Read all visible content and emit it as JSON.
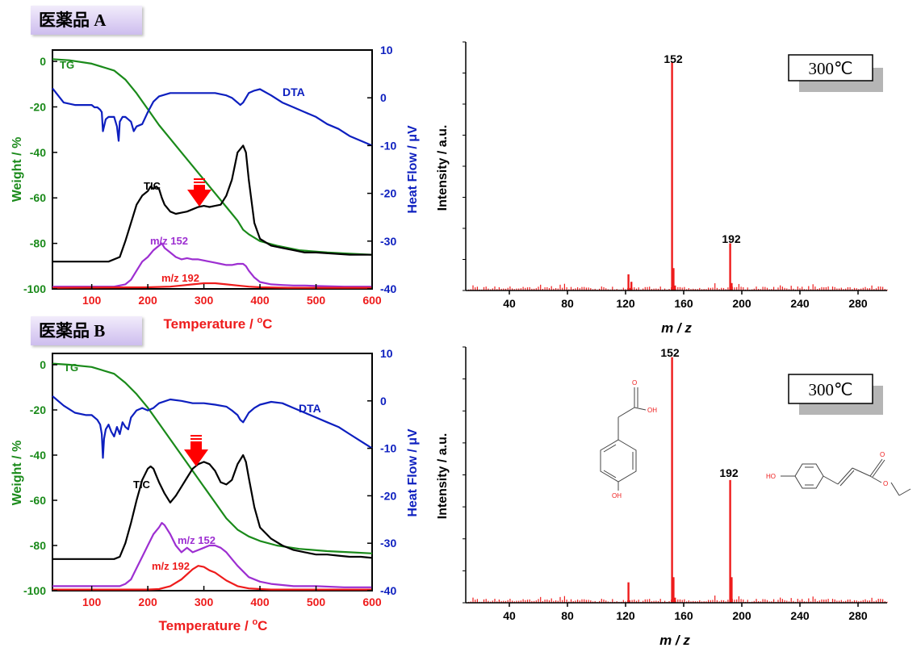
{
  "panels": [
    {
      "label": "医薬品 A",
      "tga": {
        "xlabel": "Temperature / ",
        "xlabel_unit": "C",
        "xlabel_sup": "o",
        "ylabel_left": "Weight / %",
        "ylabel_right": "Heat Flow / μV",
        "xticks": [
          100,
          200,
          300,
          400,
          500,
          600
        ],
        "xlim": [
          30,
          600
        ],
        "yticks_left": [
          0,
          -20,
          -40,
          -60,
          -80,
          -100
        ],
        "ylim_left": [
          -100,
          5
        ],
        "yticks_right": [
          10,
          0,
          -10,
          -20,
          -30,
          -40
        ],
        "ylim_right": [
          -40,
          10
        ],
        "series": [
          {
            "name": "TG",
            "color": "#1a8a1a",
            "x": [
              30,
              60,
              100,
              140,
              160,
              180,
              200,
              220,
              240,
              260,
              280,
              300,
              320,
              340,
              360,
              370,
              380,
              400,
              430,
              470,
              520,
              560,
              600
            ],
            "y": [
              1,
              0.5,
              -1,
              -4,
              -8,
              -14,
              -21,
              -28,
              -34,
              -40,
              -46,
              -52,
              -58,
              -64,
              -70,
              -74,
              -76,
              -79,
              -81,
              -83,
              -84,
              -84.5,
              -85
            ]
          },
          {
            "name": "DTA",
            "color": "#0d1fbf",
            "x": [
              30,
              50,
              70,
              90,
              100,
              105,
              110,
              115,
              118,
              120,
              125,
              130,
              135,
              140,
              145,
              148,
              150,
              155,
              160,
              165,
              170,
              175,
              180,
              190,
              200,
              210,
              220,
              240,
              260,
              280,
              300,
              320,
              340,
              350,
              360,
              365,
              370,
              375,
              380,
              390,
              400,
              420,
              440,
              460,
              480,
              500,
              520,
              540,
              560,
              580,
              600
            ],
            "y": [
              2,
              -1,
              -1.5,
              -1.5,
              -1.5,
              -2,
              -2,
              -2.5,
              -3,
              -7,
              -4.5,
              -4,
              -4,
              -4,
              -6,
              -9,
              -5,
              -4,
              -4,
              -4.5,
              -5,
              -7,
              -6,
              -5.5,
              -3,
              -0.8,
              0.3,
              1,
              1,
              1,
              1,
              1,
              0.5,
              0,
              -1,
              -1.5,
              -1,
              0,
              1,
              1.5,
              1.8,
              0.5,
              -1,
              -2,
              -3,
              -4,
              -5.5,
              -6.5,
              -8,
              -9,
              -10
            ]
          },
          {
            "name": "TIC",
            "color": "#000000",
            "x": [
              30,
              80,
              130,
              150,
              160,
              170,
              180,
              190,
              200,
              205,
              210,
              215,
              220,
              225,
              230,
              240,
              250,
              260,
              270,
              280,
              290,
              300,
              310,
              320,
              330,
              340,
              350,
              360,
              370,
              375,
              380,
              390,
              400,
              420,
              440,
              460,
              480,
              500,
              530,
              560,
              590,
              600
            ],
            "y": [
              -88,
              -88,
              -88,
              -86,
              -79,
              -71,
              -63,
              -59,
              -57,
              -55,
              -56,
              -55,
              -56,
              -60,
              -63,
              -66,
              -67,
              -66.5,
              -66,
              -65,
              -64,
              -63.5,
              -64,
              -63.5,
              -63,
              -59,
              -52,
              -40,
              -37,
              -40,
              -52,
              -71,
              -78,
              -81,
              -82,
              -83,
              -84,
              -84,
              -84.5,
              -85,
              -85,
              -85
            ]
          },
          {
            "name": "m/z 152",
            "color": "#9d2fd1",
            "x": [
              30,
              140,
              160,
              170,
              180,
              190,
              200,
              210,
              220,
              225,
              230,
              240,
              250,
              260,
              270,
              280,
              290,
              300,
              310,
              320,
              330,
              340,
              350,
              360,
              370,
              375,
              380,
              390,
              400,
              420,
              440,
              460,
              480,
              500,
              550,
              600
            ],
            "y": [
              -99,
              -99,
              -98,
              -96,
              -92,
              -88,
              -86,
              -83,
              -81,
              -80,
              -82,
              -84,
              -86,
              -87,
              -86.5,
              -87,
              -87,
              -87.5,
              -88,
              -88.5,
              -89,
              -89.5,
              -89.5,
              -89,
              -89,
              -90,
              -92,
              -95,
              -97,
              -98,
              -98.3,
              -98.5,
              -98.5,
              -98.7,
              -99,
              -99
            ]
          },
          {
            "name": "m/z 192",
            "color": "#ee1c1c",
            "x": [
              30,
              200,
              240,
              260,
              280,
              300,
              320,
              340,
              360,
              380,
              400,
              450,
              500,
              600
            ],
            "y": [
              -99.5,
              -99.3,
              -99,
              -98.5,
              -98,
              -97.5,
              -97.5,
              -98,
              -98.5,
              -99,
              -99.3,
              -99.5,
              -99.5,
              -99.5
            ]
          }
        ],
        "labels": [
          {
            "text": "TG",
            "color": "#1a8a1a"
          },
          {
            "text": "DTA",
            "color": "#0d1fbf"
          },
          {
            "text": "TIC",
            "color": "#000000"
          },
          {
            "text": "m/z 152",
            "color": "#9d2fd1"
          },
          {
            "text": "m/z 192",
            "color": "#ee1c1c"
          }
        ]
      },
      "ms": {
        "xlabel": "m / z",
        "ylabel": "Intensity / a.u.",
        "xticks": [
          40,
          80,
          120,
          160,
          200,
          240,
          280
        ],
        "xlim": [
          10,
          300
        ],
        "temperature_box": "300℃",
        "peaks": [
          [
            122,
            0.065
          ],
          [
            124,
            0.035
          ],
          [
            152,
            0.92
          ],
          [
            153,
            0.09
          ],
          [
            154,
            0.02
          ],
          [
            192,
            0.19
          ],
          [
            193,
            0.03
          ]
        ],
        "peak_labels": [
          {
            "mz": 152,
            "text": "152"
          },
          {
            "mz": 192,
            "text": "192"
          }
        ]
      }
    },
    {
      "label": "医薬品 B",
      "tga": {
        "xlabel": "Temperature / ",
        "xlabel_unit": "C",
        "xlabel_sup": "o",
        "ylabel_left": "Weight / %",
        "ylabel_right": "Heat Flow / μV",
        "xticks": [
          100,
          200,
          300,
          400,
          500,
          600
        ],
        "xlim": [
          30,
          600
        ],
        "yticks_left": [
          0,
          -20,
          -40,
          -60,
          -80,
          -100
        ],
        "ylim_left": [
          -100,
          5
        ],
        "yticks_right": [
          10,
          0,
          -10,
          -20,
          -30,
          -40
        ],
        "ylim_right": [
          -40,
          10
        ],
        "series": [
          {
            "name": "TG",
            "color": "#1a8a1a",
            "x": [
              30,
              60,
              100,
              140,
              160,
              180,
              200,
              220,
              240,
              260,
              280,
              300,
              320,
              340,
              360,
              380,
              400,
              430,
              470,
              520,
              560,
              600
            ],
            "y": [
              0.5,
              0,
              -1,
              -4,
              -8,
              -13,
              -19,
              -26,
              -33,
              -40,
              -47,
              -54,
              -61,
              -68,
              -73,
              -76,
              -78,
              -80,
              -81.5,
              -82.5,
              -83,
              -83.5
            ]
          },
          {
            "name": "DTA",
            "color": "#0d1fbf",
            "x": [
              30,
              50,
              70,
              90,
              100,
              110,
              115,
              118,
              120,
              122,
              125,
              130,
              135,
              140,
              145,
              150,
              155,
              160,
              165,
              170,
              180,
              190,
              200,
              210,
              220,
              240,
              260,
              280,
              300,
              320,
              340,
              350,
              360,
              365,
              370,
              375,
              380,
              390,
              400,
              420,
              440,
              460,
              480,
              500,
              520,
              540,
              560,
              580,
              600
            ],
            "y": [
              1,
              -1,
              -2.5,
              -3,
              -3,
              -4,
              -5,
              -7,
              -12,
              -8,
              -6,
              -5,
              -6.5,
              -7.5,
              -5.5,
              -7,
              -4.5,
              -5.5,
              -6,
              -3.5,
              -2,
              -1.5,
              -2,
              -1.5,
              -0.5,
              0.3,
              0,
              -0.5,
              -0.5,
              -0.8,
              -1.2,
              -2,
              -3,
              -4,
              -4.5,
              -3.5,
              -2.5,
              -1.5,
              -0.8,
              -0.2,
              -0.5,
              -1.5,
              -2.5,
              -3.5,
              -4.5,
              -5.5,
              -7,
              -8.5,
              -10
            ]
          },
          {
            "name": "TIC",
            "color": "#000000",
            "x": [
              30,
              90,
              140,
              150,
              160,
              170,
              180,
              190,
              200,
              205,
              210,
              215,
              220,
              230,
              240,
              250,
              260,
              270,
              280,
              290,
              300,
              310,
              320,
              330,
              340,
              350,
              360,
              370,
              375,
              380,
              390,
              400,
              420,
              440,
              460,
              480,
              500,
              520,
              540,
              560,
              580,
              600
            ],
            "y": [
              -86,
              -86,
              -86,
              -85,
              -79,
              -70,
              -60,
              -51,
              -46,
              -45,
              -46,
              -49,
              -52,
              -57,
              -61,
              -58,
              -54,
              -50,
              -46,
              -44,
              -43,
              -44,
              -47,
              -52,
              -53,
              -51,
              -44,
              -40,
              -43,
              -50,
              -63,
              -72,
              -77,
              -80,
              -82,
              -83,
              -84,
              -84,
              -84.5,
              -85,
              -85,
              -85.5
            ]
          },
          {
            "name": "m/z 152",
            "color": "#9d2fd1",
            "x": [
              30,
              150,
              160,
              170,
              180,
              190,
              200,
              210,
              220,
              225,
              230,
              240,
              250,
              260,
              270,
              280,
              290,
              300,
              310,
              320,
              330,
              340,
              350,
              360,
              380,
              400,
              420,
              440,
              460,
              480,
              500,
              550,
              600
            ],
            "y": [
              -98,
              -98,
              -97,
              -95,
              -90,
              -85,
              -80,
              -75,
              -72,
              -70,
              -71,
              -75,
              -80,
              -83,
              -81,
              -83,
              -82,
              -81,
              -80,
              -80,
              -81,
              -83,
              -86,
              -89,
              -94,
              -96,
              -97,
              -97.5,
              -98,
              -98,
              -98,
              -98.5,
              -98.5
            ]
          },
          {
            "name": "m/z 192",
            "color": "#ee1c1c",
            "x": [
              30,
              170,
              200,
              220,
              240,
              260,
              280,
              290,
              300,
              310,
              320,
              340,
              360,
              380,
              400,
              420,
              450,
              500,
              600
            ],
            "y": [
              -99.5,
              -99.5,
              -99.5,
              -99.3,
              -98,
              -95,
              -90.5,
              -89,
              -89.5,
              -91,
              -92,
              -95.5,
              -98,
              -99,
              -99.3,
              -99.5,
              -99.5,
              -99.5,
              -99.5
            ]
          }
        ],
        "labels": [
          {
            "text": "TG",
            "color": "#1a8a1a"
          },
          {
            "text": "DTA",
            "color": "#0d1fbf"
          },
          {
            "text": "TIC",
            "color": "#000000"
          },
          {
            "text": "m/z 152",
            "color": "#9d2fd1"
          },
          {
            "text": "m/z 192",
            "color": "#ee1c1c"
          }
        ]
      },
      "ms": {
        "xlabel": "m / z",
        "ylabel": "Intensity / a.u.",
        "xticks": [
          40,
          80,
          120,
          160,
          200,
          240,
          280
        ],
        "xlim": [
          10,
          300
        ],
        "temperature_box": "300℃",
        "peaks": [
          [
            122,
            0.08
          ],
          [
            152,
            0.96
          ],
          [
            153,
            0.1
          ],
          [
            154,
            0.02
          ],
          [
            192,
            0.48
          ],
          [
            193,
            0.1
          ]
        ],
        "peak_labels": [
          {
            "mz": 152,
            "text": "152"
          },
          {
            "mz": 192,
            "text": "192"
          }
        ]
      }
    }
  ],
  "chart_data": [
    {
      "type": "line",
      "title": "医薬品 A",
      "xlabel": "Temperature / oC",
      "ylabel": "Weight / %",
      "y2label": "Heat Flow / μV",
      "series_names": [
        "TG",
        "DTA",
        "TIC",
        "m/z 152",
        "m/z 192"
      ]
    },
    {
      "type": "bar",
      "title": "医薬品 A 300℃",
      "xlabel": "m / z",
      "ylabel": "Intensity / a.u.",
      "peaks": [
        152,
        192
      ]
    },
    {
      "type": "line",
      "title": "医薬品 B",
      "xlabel": "Temperature / oC",
      "ylabel": "Weight / %",
      "y2label": "Heat Flow / μV",
      "series_names": [
        "TG",
        "DTA",
        "TIC",
        "m/z 152",
        "m/z 192"
      ]
    },
    {
      "type": "bar",
      "title": "医薬品 B 300℃",
      "xlabel": "m / z",
      "ylabel": "Intensity / a.u.",
      "peaks": [
        152,
        192
      ]
    }
  ]
}
